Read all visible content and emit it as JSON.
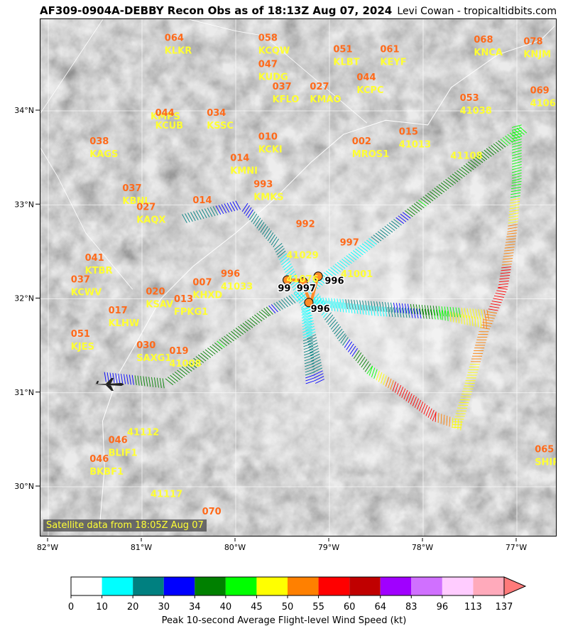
{
  "title": "AF309-0904A-DEBBY Recon Obs as of 18:13Z Aug 07, 2024",
  "credit": "Levi Cowan - tropicaltidbits.com",
  "satellite_note": "Satellite data from 18:05Z Aug 07",
  "axes": {
    "lon_ticks": [
      "82°W",
      "81°W",
      "80°W",
      "79°W",
      "78°W",
      "77°W"
    ],
    "lat_ticks": [
      "34°N",
      "33°N",
      "32°N",
      "31°N",
      "30°N"
    ]
  },
  "colorbar": {
    "label": "Peak 10-second Average Flight-level Wind Speed (kt)",
    "ticks": [
      "0",
      "10",
      "20",
      "30",
      "34",
      "40",
      "45",
      "50",
      "55",
      "60",
      "64",
      "83",
      "96",
      "113",
      "137"
    ],
    "colors": [
      "#ffffff",
      "#00ffff",
      "#008080",
      "#0000ff",
      "#008000",
      "#00ff00",
      "#ffff00",
      "#ff8000",
      "#ff0000",
      "#c00000",
      "#a000ff",
      "#d070ff",
      "#ffccff",
      "#ffaabb",
      "#ff7a7a"
    ]
  },
  "colors": {
    "pressure": "#ff6a1a",
    "station": "#ffff33",
    "track_marker": "#ff8c28"
  },
  "stations": [
    {
      "id": "KLKR",
      "value": "064",
      "lon": -80.85,
      "lat": 34.7
    },
    {
      "id": "KCQW",
      "value": "058",
      "lon": -79.85,
      "lat": 34.7
    },
    {
      "id": "KLBT",
      "value": "051",
      "lon": -79.05,
      "lat": 34.58
    },
    {
      "id": "KEYF",
      "value": "061",
      "lon": -78.55,
      "lat": 34.58
    },
    {
      "id": "KNCA",
      "value": "068",
      "lon": -77.55,
      "lat": 34.68
    },
    {
      "id": "KNJM",
      "value": "078",
      "lon": -77.02,
      "lat": 34.66
    },
    {
      "id": "KUDG",
      "value": "047",
      "lon": -79.85,
      "lat": 34.42
    },
    {
      "id": "KFLO",
      "value": "037",
      "lon": -79.7,
      "lat": 34.18
    },
    {
      "id": "KMAO",
      "value": "027",
      "lon": -79.3,
      "lat": 34.18
    },
    {
      "id": "KCPC",
      "value": "044",
      "lon": -78.8,
      "lat": 34.28
    },
    {
      "id": "41038",
      "value": "053",
      "lon": -77.7,
      "lat": 34.06
    },
    {
      "id": "41064",
      "value": "069",
      "lon": -76.95,
      "lat": 34.14
    },
    {
      "id": "KMPS",
      "value": "",
      "lon": -81.0,
      "lat": 34.0
    },
    {
      "id": "KCUB",
      "value": "044",
      "lon": -80.95,
      "lat": 33.9
    },
    {
      "id": "KSSC",
      "value": "034",
      "lon": -80.4,
      "lat": 33.9
    },
    {
      "id": "KCKI",
      "value": "010",
      "lon": -79.85,
      "lat": 33.65
    },
    {
      "id": "MROS1",
      "value": "002",
      "lon": -78.85,
      "lat": 33.6
    },
    {
      "id": "41013",
      "value": "015",
      "lon": -78.35,
      "lat": 33.7
    },
    {
      "id": "41108",
      "value": "",
      "lon": -77.8,
      "lat": 33.58
    },
    {
      "id": "KAGS",
      "value": "038",
      "lon": -81.65,
      "lat": 33.6
    },
    {
      "id": "KMNI",
      "value": "014",
      "lon": -80.15,
      "lat": 33.42
    },
    {
      "id": "KBNL",
      "value": "037",
      "lon": -81.3,
      "lat": 33.1
    },
    {
      "id": "KMKS",
      "value": "993",
      "lon": -79.9,
      "lat": 33.14
    },
    {
      "id": "KAQX",
      "value": "027",
      "lon": -81.15,
      "lat": 32.9
    },
    {
      "id": "",
      "value": "014",
      "lon": -80.55,
      "lat": 32.97
    },
    {
      "id": "41029",
      "value": "",
      "lon": -79.55,
      "lat": 32.52
    },
    {
      "id": "",
      "value": "992",
      "lon": -79.45,
      "lat": 32.72
    },
    {
      "id": "KTBR",
      "value": "041",
      "lon": -81.7,
      "lat": 32.36
    },
    {
      "id": "41076",
      "value": "",
      "lon": -79.55,
      "lat": 32.27
    },
    {
      "id": "41001",
      "value": "",
      "lon": -78.97,
      "lat": 32.32
    },
    {
      "id": "",
      "value": "997",
      "lon": -78.98,
      "lat": 32.52
    },
    {
      "id": "41033",
      "value": "996",
      "lon": -80.25,
      "lat": 32.19
    },
    {
      "id": "KHXD",
      "value": "007",
      "lon": -80.55,
      "lat": 32.1
    },
    {
      "id": "KCWV",
      "value": "037",
      "lon": -81.85,
      "lat": 32.13
    },
    {
      "id": "KSAV",
      "value": "020",
      "lon": -81.05,
      "lat": 32.0
    },
    {
      "id": "FPKG1",
      "value": "013",
      "lon": -80.75,
      "lat": 31.92
    },
    {
      "id": "KLHW",
      "value": "017",
      "lon": -81.45,
      "lat": 31.8
    },
    {
      "id": "KJES",
      "value": "051",
      "lon": -81.85,
      "lat": 31.55
    },
    {
      "id": "SAXG1",
      "value": "030",
      "lon": -81.15,
      "lat": 31.43
    },
    {
      "id": "41008",
      "value": "019",
      "lon": -80.8,
      "lat": 31.37
    },
    {
      "id": "41112",
      "value": "",
      "lon": -81.25,
      "lat": 30.64
    },
    {
      "id": "BLIF1",
      "value": "046",
      "lon": -81.45,
      "lat": 30.42
    },
    {
      "id": "BKBF1",
      "value": "046",
      "lon": -81.65,
      "lat": 30.22
    },
    {
      "id": "41117",
      "value": "",
      "lon": -81.0,
      "lat": 29.98
    },
    {
      "id": "SHIP",
      "value": "065",
      "lon": -76.9,
      "lat": 30.32
    },
    {
      "id": "",
      "value": "070",
      "lon": -80.45,
      "lat": 29.66
    }
  ],
  "flight_pressures": [
    {
      "label": "997",
      "lon": -79.35,
      "lat": 32.08
    },
    {
      "label": "996",
      "lon": -79.05,
      "lat": 32.16
    },
    {
      "label": "996",
      "lon": -79.2,
      "lat": 31.86
    },
    {
      "label": "99",
      "lon": -79.55,
      "lat": 32.08
    }
  ],
  "flight_track": [
    {
      "lon": -81.4,
      "lat": 31.22,
      "kt": 30
    },
    {
      "lon": -80.75,
      "lat": 31.15,
      "kt": 38
    },
    {
      "lon": -80.2,
      "lat": 31.55,
      "kt": 40
    },
    {
      "lon": -79.7,
      "lat": 31.9,
      "kt": 36
    },
    {
      "lon": -79.3,
      "lat": 32.1,
      "kt": 12
    },
    {
      "lon": -78.7,
      "lat": 32.55,
      "kt": 15
    },
    {
      "lon": -78.05,
      "lat": 33.05,
      "kt": 40
    },
    {
      "lon": -77.4,
      "lat": 33.55,
      "kt": 37
    },
    {
      "lon": -76.95,
      "lat": 33.85,
      "kt": 43
    },
    {
      "lon": -76.95,
      "lat": 33.25,
      "kt": 42
    },
    {
      "lon": -77.0,
      "lat": 32.7,
      "kt": 52
    },
    {
      "lon": -77.1,
      "lat": 32.1,
      "kt": 57
    },
    {
      "lon": -77.3,
      "lat": 31.65,
      "kt": 53
    },
    {
      "lon": -77.45,
      "lat": 31.1,
      "kt": 48
    },
    {
      "lon": -77.6,
      "lat": 30.6,
      "kt": 46
    },
    {
      "lon": -77.9,
      "lat": 30.7,
      "kt": 56
    },
    {
      "lon": -78.3,
      "lat": 31.0,
      "kt": 57
    },
    {
      "lon": -78.6,
      "lat": 31.2,
      "kt": 40
    },
    {
      "lon": -78.9,
      "lat": 31.55,
      "kt": 28
    },
    {
      "lon": -79.2,
      "lat": 32.0,
      "kt": 12
    },
    {
      "lon": -78.5,
      "lat": 31.92,
      "kt": 15
    },
    {
      "lon": -77.8,
      "lat": 31.88,
      "kt": 44
    },
    {
      "lon": -77.3,
      "lat": 31.78,
      "kt": 51
    },
    {
      "lon": -79.2,
      "lat": 31.92,
      "kt": 12
    },
    {
      "lon": -79.15,
      "lat": 31.1,
      "kt": 33
    },
    {
      "lon": -79.3,
      "lat": 31.9,
      "kt": 12
    },
    {
      "lon": -79.6,
      "lat": 32.55,
      "kt": 22
    },
    {
      "lon": -79.95,
      "lat": 32.95,
      "kt": 33
    },
    {
      "lon": -80.55,
      "lat": 32.8,
      "kt": 25
    }
  ]
}
